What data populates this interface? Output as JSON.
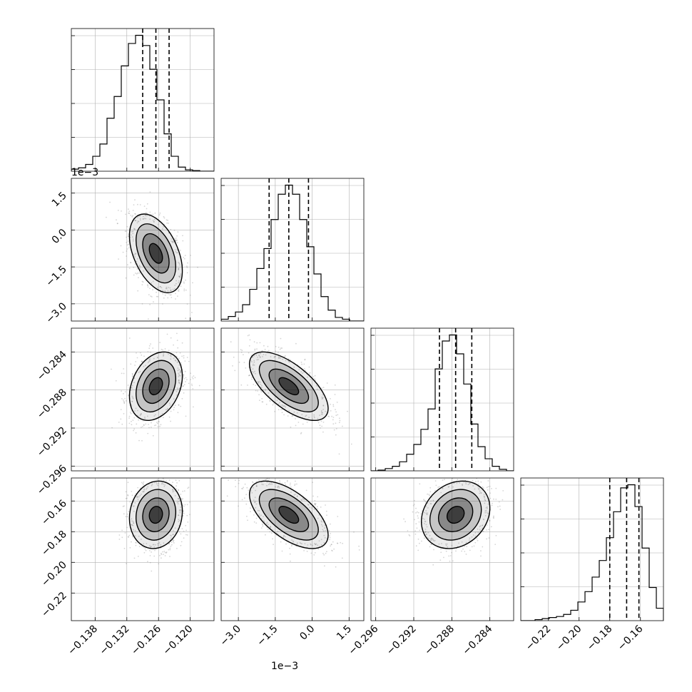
{
  "chart_data": {
    "type": "corner",
    "parameters": [
      {
        "range": [
          -0.1425,
          -0.1155
        ],
        "ticks": [
          -0.138,
          -0.132,
          -0.126,
          -0.12
        ],
        "tick_labels": [
          "−0.138",
          "−0.132",
          "−0.126",
          "−0.120"
        ],
        "offset_label": "",
        "quantiles": [
          -0.129,
          -0.1265,
          -0.124
        ],
        "hist": {
          "edges_start": -0.1425,
          "bin_width": 0.00135,
          "counts": [
            3,
            5,
            10,
            22,
            40,
            78,
            110,
            155,
            188,
            200,
            185,
            150,
            105,
            55,
            22,
            6,
            2,
            1,
            0,
            0
          ]
        }
      },
      {
        "range": [
          -3.7,
          2.1
        ],
        "ticks": [
          -3.0,
          -1.5,
          0.0,
          1.5
        ],
        "tick_labels": [
          "−3.0",
          "−1.5",
          "0.0",
          "1.5"
        ],
        "offset_label": "1e−3",
        "quantiles": [
          -1.75,
          -0.95,
          -0.15
        ],
        "hist": {
          "edges_start": -3.7,
          "bin_width": 0.29,
          "counts": [
            2,
            5,
            10,
            18,
            35,
            58,
            80,
            112,
            140,
            150,
            140,
            112,
            82,
            52,
            27,
            12,
            4,
            2,
            0,
            0
          ]
        }
      },
      {
        "range": [
          -0.2965,
          -0.2815
        ],
        "ticks": [
          -0.296,
          -0.292,
          -0.288,
          -0.284
        ],
        "tick_labels": [
          "−0.296",
          "−0.292",
          "−0.288",
          "−0.284"
        ],
        "offset_label": "",
        "quantiles": [
          -0.2893,
          -0.2876,
          -0.2859
        ],
        "hist": {
          "edges_start": -0.2965,
          "bin_width": 0.00075,
          "counts": [
            0,
            1,
            3,
            6,
            12,
            22,
            35,
            55,
            82,
            135,
            172,
            180,
            155,
            115,
            62,
            32,
            16,
            6,
            2,
            0
          ]
        }
      },
      {
        "range": [
          -0.238,
          -0.145
        ],
        "ticks": [
          -0.22,
          -0.2,
          -0.18,
          -0.16
        ],
        "tick_labels": [
          "−0.22",
          "−0.20",
          "−0.18",
          "−0.16"
        ],
        "offset_label": "",
        "quantiles": [
          -0.18,
          -0.169,
          -0.161
        ],
        "hist": {
          "edges_start": -0.238,
          "bin_width": 0.00465,
          "counts": [
            0,
            0,
            1,
            2,
            3,
            4,
            6,
            10,
            18,
            28,
            42,
            58,
            80,
            105,
            128,
            131,
            110,
            70,
            32,
            12
          ]
        }
      }
    ],
    "pairs": [
      {
        "x": 0,
        "y": 1,
        "mean": [
          -0.1265,
          -0.95
        ],
        "sd": [
          0.0025,
          0.8
        ],
        "rho": -0.45
      },
      {
        "x": 0,
        "y": 2,
        "mean": [
          -0.1265,
          -0.2876
        ],
        "sd": [
          0.0025,
          0.0018
        ],
        "rho": 0.3
      },
      {
        "x": 1,
        "y": 2,
        "mean": [
          -0.95,
          -0.2876
        ],
        "sd": [
          0.8,
          0.0018
        ],
        "rho": -0.65
      },
      {
        "x": 0,
        "y": 3,
        "mean": [
          -0.1265,
          -0.169
        ],
        "sd": [
          0.0025,
          0.011
        ],
        "rho": 0.1
      },
      {
        "x": 1,
        "y": 3,
        "mean": [
          -0.95,
          -0.169
        ],
        "sd": [
          0.8,
          0.011
        ],
        "rho": -0.6
      },
      {
        "x": 2,
        "y": 3,
        "mean": [
          -0.2876,
          -0.169
        ],
        "sd": [
          0.0018,
          0.011
        ],
        "rho": 0.2
      }
    ],
    "contour_levels_sigma": [
      0.5,
      1.0,
      1.5,
      2.0
    ],
    "grid": true,
    "colors": {
      "line": "#000000",
      "grid": "#b0b0b0",
      "points": "#888888",
      "density": "#000000"
    }
  }
}
